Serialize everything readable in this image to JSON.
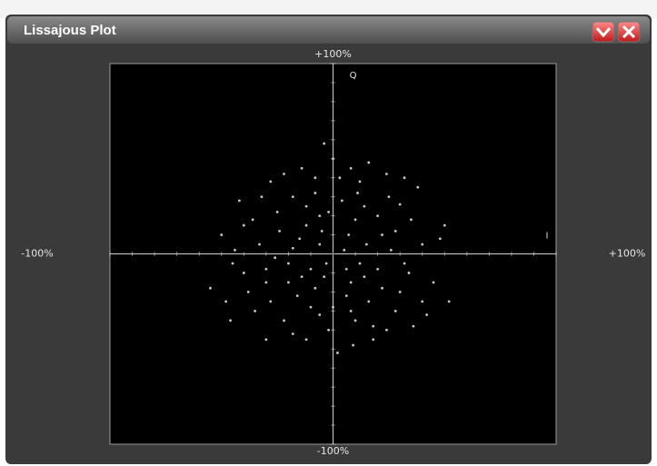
{
  "window": {
    "title": "Lissajous Plot"
  },
  "chart_data": {
    "type": "scatter",
    "x_axis_label": "I",
    "y_axis_label": "Q",
    "color": "#c8c8c8",
    "xlim": [
      -100,
      100
    ],
    "ylim": [
      -100,
      100
    ],
    "xticks": [
      {
        "value": -100,
        "label": "-100%"
      },
      {
        "value": 100,
        "label": "+100%"
      }
    ],
    "yticks": [
      {
        "value": -100,
        "label": "-100%"
      },
      {
        "value": 100,
        "label": "+100%"
      }
    ],
    "x": [
      -5,
      8,
      -18,
      22,
      -30,
      14,
      -10,
      3,
      -25,
      30,
      -40,
      40,
      -12,
      18,
      5,
      -3,
      10,
      -20,
      25,
      -35,
      0,
      -8,
      12,
      -15,
      35,
      -45,
      20,
      -28,
      8,
      -2,
      45,
      -50,
      15,
      -6,
      28,
      -22,
      6,
      -33,
      38,
      -14,
      2,
      -38,
      48,
      -18,
      11,
      -26,
      32,
      -8,
      16,
      -42,
      24,
      -4,
      9,
      -30,
      36,
      -55,
      52,
      -12,
      4,
      -20,
      20,
      -6,
      14,
      -36,
      26,
      -16,
      7,
      -24,
      30,
      -10,
      42,
      -48,
      18,
      -2,
      -28,
      10,
      -44,
      34,
      -8,
      22,
      -32,
      12,
      -18,
      28,
      -4,
      6,
      -12,
      40,
      -46,
      16,
      -22,
      32,
      -40,
      0,
      50,
      -30,
      8,
      -14,
      24,
      -6
    ],
    "y": [
      12,
      -15,
      3,
      10,
      -8,
      25,
      -28,
      40,
      22,
      -20,
      15,
      5,
      -45,
      -38,
      2,
      -5,
      18,
      -15,
      30,
      -30,
      50,
      32,
      -5,
      8,
      18,
      -5,
      -8,
      38,
      45,
      -40,
      -15,
      10,
      5,
      20,
      -30,
      -35,
      -22,
      5,
      35,
      45,
      -52,
      -20,
      8,
      30,
      32,
      -2,
      -5,
      -18,
      -25,
      28,
      42,
      58,
      -48,
      -45,
      -38,
      -18,
      -25,
      15,
      28,
      -5,
      20,
      -32,
      -12,
      18,
      2,
      -22,
      10,
      12,
      26,
      -8,
      -32,
      -25,
      -45,
      22,
      -25,
      -35,
      2,
      -10,
      40,
      -18,
      30,
      38,
      -42,
      12,
      -12,
      -8,
      25,
      -25,
      -35,
      48,
      42,
      40,
      -10,
      -28,
      15,
      -15,
      -30,
      -12,
      -40,
      5
    ]
  }
}
